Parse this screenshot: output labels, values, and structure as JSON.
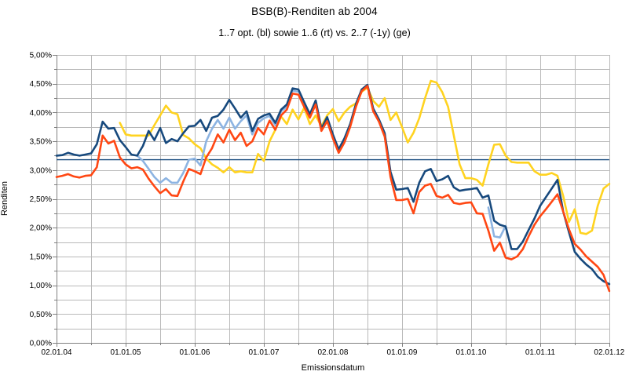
{
  "title": "BSB(B)-Renditen ab 2004",
  "subtitle": "1..7 opt. (bl) sowie 1..6 (rt) vs. 2..7 (-1y) (ge)",
  "chart_data": {
    "type": "line",
    "title": "BSB(B)-Renditen ab 2004",
    "subtitle": "1..7 opt. (bl) sowie 1..6 (rt) vs. 2..7 (-1y) (ge)",
    "xlabel": "Emissionsdatum",
    "ylabel": "Renditen",
    "x_tick_labels": [
      "02.01.04",
      "01.01.05",
      "01.01.06",
      "01.01.07",
      "02.01.08",
      "01.01.09",
      "01.01.10",
      "01.01.11",
      "02.01.12"
    ],
    "y_tick_labels": [
      "5,00%",
      "4,50%",
      "4,00%",
      "3,50%",
      "3,00%",
      "2,50%",
      "2,00%",
      "1,50%",
      "1,00%",
      "0,50%",
      "0,00%"
    ],
    "ylim": [
      0,
      5
    ],
    "y_minor_step_pct": 0.25,
    "x_range_years": [
      2004,
      2012
    ],
    "x_minor_step_years": 0.5,
    "x_resolution": "monthly, 97 points from 2004-01 to 2012-01",
    "grid": true,
    "legend_position": "none",
    "plot_bg": "#ffffff",
    "grid_color": "#b9b9b9",
    "axis_color": "#808080",
    "reference_line": {
      "name": "(Referenzlinie)",
      "value": 3.18,
      "color": "#17497d",
      "width": 1.4
    },
    "series": [
      {
        "name": "2..7 (-1y) (ge)",
        "color": "#ffd320",
        "width": 2.6,
        "values": [
          null,
          null,
          null,
          null,
          null,
          null,
          null,
          null,
          null,
          null,
          null,
          3.82,
          3.62,
          3.6,
          3.6,
          3.6,
          3.6,
          3.78,
          3.95,
          4.12,
          4.0,
          3.97,
          3.61,
          3.55,
          3.45,
          3.38,
          3.2,
          3.1,
          3.04,
          2.96,
          3.05,
          2.96,
          2.98,
          2.96,
          2.96,
          3.28,
          3.16,
          3.5,
          3.7,
          3.93,
          3.8,
          4.05,
          3.88,
          4.08,
          3.8,
          3.95,
          3.76,
          3.95,
          4.06,
          3.85,
          4.0,
          4.1,
          4.16,
          4.36,
          4.43,
          4.2,
          4.1,
          4.25,
          3.87,
          4.0,
          3.75,
          3.48,
          3.65,
          3.9,
          4.25,
          4.55,
          4.52,
          4.35,
          4.1,
          3.6,
          3.1,
          2.86,
          2.86,
          2.83,
          2.73,
          3.1,
          3.44,
          3.45,
          3.25,
          3.14,
          3.13,
          3.13,
          3.13,
          2.98,
          2.92,
          2.92,
          2.95,
          2.9,
          2.55,
          2.1,
          2.32,
          1.91,
          1.89,
          1.95,
          2.38,
          2.68,
          2.76
        ]
      },
      {
        "name": "(hellblau)",
        "color": "#8db4e2",
        "width": 2.6,
        "values": [
          null,
          null,
          null,
          null,
          null,
          null,
          null,
          null,
          null,
          null,
          null,
          null,
          null,
          null,
          3.25,
          3.16,
          3.02,
          2.88,
          2.78,
          2.86,
          2.78,
          2.78,
          2.95,
          3.18,
          3.2,
          3.08,
          3.5,
          3.72,
          3.87,
          3.72,
          3.91,
          3.72,
          3.85,
          3.95,
          3.62,
          3.82,
          3.9,
          3.94,
          3.78,
          4.02,
          4.1,
          4.38,
          4.36,
          null,
          null,
          null,
          null,
          null,
          null,
          null,
          null,
          null,
          null,
          null,
          null,
          null,
          null,
          null,
          null,
          null,
          null,
          null,
          null,
          null,
          null,
          null,
          null,
          null,
          null,
          null,
          null,
          null,
          null,
          null,
          null,
          2.35,
          1.85,
          1.83,
          2.03,
          null,
          null,
          null,
          null,
          null,
          null,
          null,
          null,
          null,
          null,
          null,
          null,
          null,
          null,
          null,
          null,
          null,
          null
        ]
      },
      {
        "name": "1..7 opt. (bl)",
        "color": "#17497d",
        "width": 2.6,
        "values": [
          3.25,
          3.26,
          3.3,
          3.27,
          3.25,
          3.27,
          3.29,
          3.45,
          3.84,
          3.72,
          3.73,
          3.52,
          3.4,
          3.27,
          3.25,
          3.42,
          3.68,
          3.52,
          3.73,
          3.47,
          3.54,
          3.5,
          3.64,
          3.76,
          3.77,
          3.87,
          3.68,
          3.91,
          3.94,
          4.05,
          4.22,
          4.07,
          3.91,
          4.02,
          3.68,
          3.89,
          3.95,
          3.98,
          3.82,
          4.05,
          4.14,
          4.42,
          4.4,
          4.18,
          3.97,
          4.21,
          3.72,
          3.92,
          3.62,
          3.36,
          3.55,
          3.8,
          4.15,
          4.4,
          4.48,
          4.07,
          3.88,
          3.64,
          2.97,
          2.66,
          2.67,
          2.69,
          2.45,
          2.78,
          2.98,
          3.02,
          2.81,
          2.84,
          2.9,
          2.7,
          2.64,
          2.66,
          2.67,
          2.69,
          2.52,
          2.56,
          2.12,
          2.05,
          2.02,
          1.63,
          1.63,
          1.76,
          1.96,
          2.16,
          2.38,
          2.53,
          2.68,
          2.83,
          2.28,
          1.92,
          1.58,
          1.46,
          1.36,
          1.28,
          1.15,
          1.07,
          1.02
        ]
      },
      {
        "name": "1..6 (rt)",
        "color": "#ff4713",
        "width": 2.6,
        "values": [
          2.88,
          2.9,
          2.93,
          2.89,
          2.87,
          2.9,
          2.91,
          3.05,
          3.6,
          3.46,
          3.51,
          3.22,
          3.1,
          3.03,
          3.05,
          3.01,
          2.85,
          2.72,
          2.6,
          2.67,
          2.56,
          2.55,
          2.8,
          3.02,
          2.98,
          2.93,
          3.22,
          3.38,
          3.62,
          3.48,
          3.7,
          3.52,
          3.65,
          3.42,
          3.5,
          3.73,
          3.62,
          3.86,
          3.7,
          3.95,
          4.05,
          4.33,
          4.31,
          4.1,
          3.91,
          4.14,
          3.68,
          3.85,
          3.55,
          3.3,
          3.48,
          3.75,
          4.1,
          4.37,
          4.46,
          4.02,
          3.84,
          3.58,
          2.88,
          2.48,
          2.48,
          2.5,
          2.25,
          2.62,
          2.73,
          2.76,
          2.55,
          2.52,
          2.57,
          2.43,
          2.41,
          2.43,
          2.44,
          2.25,
          2.24,
          1.95,
          1.6,
          1.74,
          1.48,
          1.45,
          1.5,
          1.63,
          1.85,
          2.05,
          2.2,
          2.32,
          2.45,
          2.58,
          2.28,
          1.97,
          1.72,
          1.62,
          1.5,
          1.41,
          1.32,
          1.18,
          0.9
        ]
      }
    ]
  }
}
